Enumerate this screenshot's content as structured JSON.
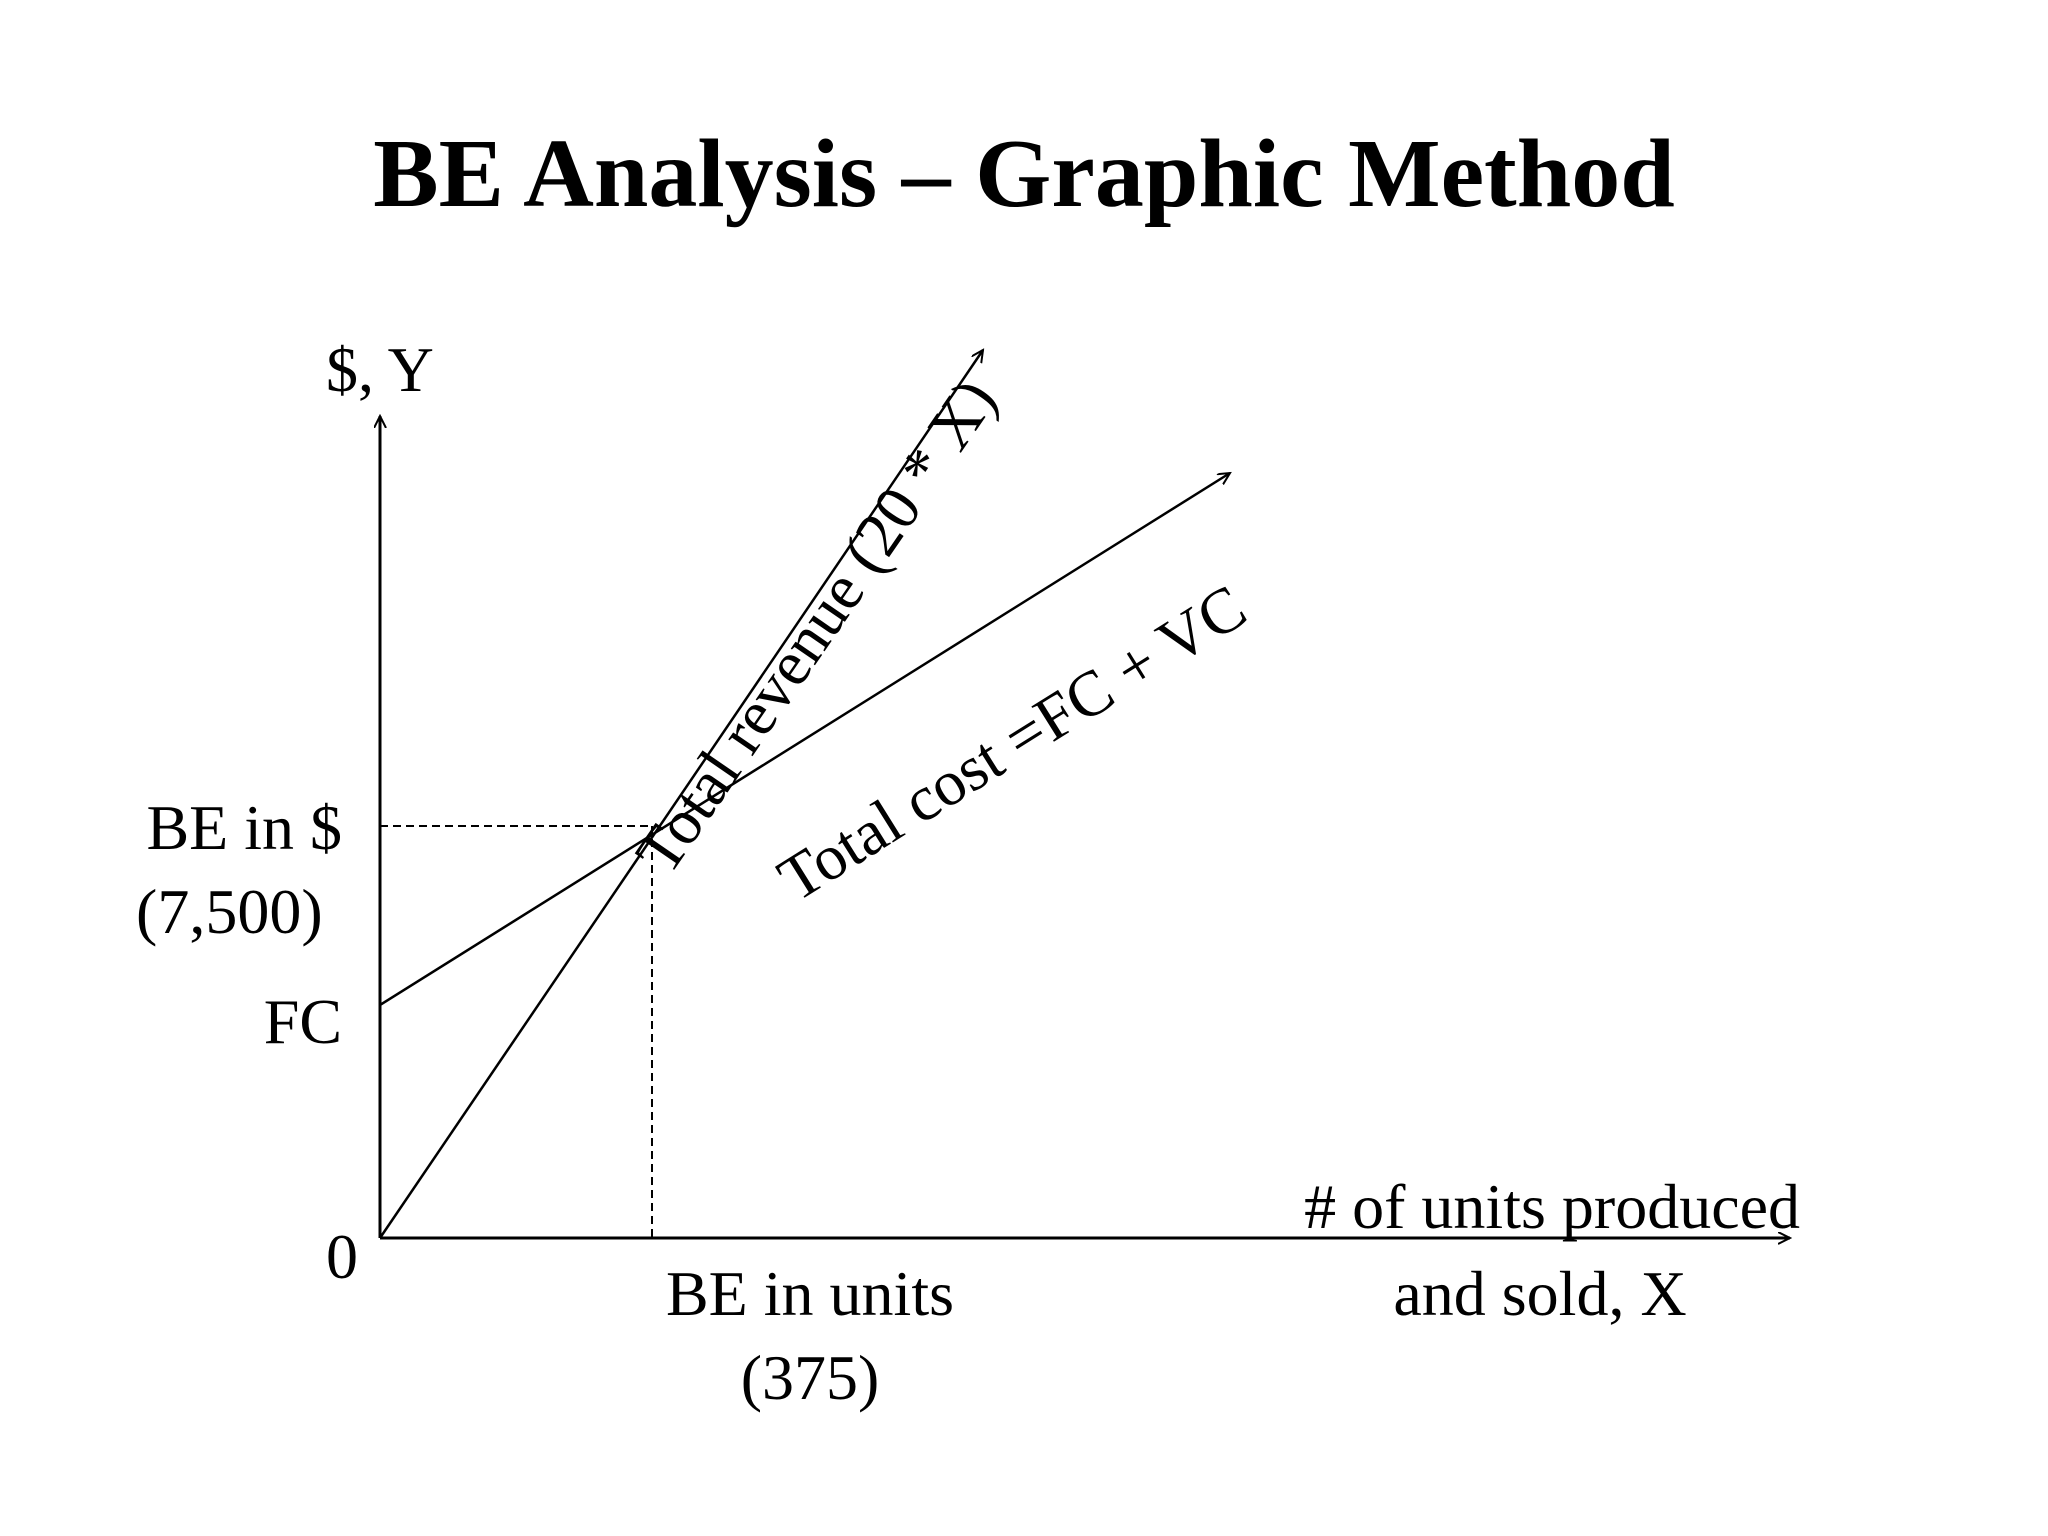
{
  "title": "BE Analysis – Graphic Method",
  "axes": {
    "y_label": "$, Y",
    "x_label_line1": "# of units produced",
    "x_label_line2": "and sold, X",
    "origin_label": "0"
  },
  "labels": {
    "be_dollars_line1": "BE in $",
    "be_dollars_line2": "(7,500)",
    "fc": "FC",
    "be_units_line1": "BE in units",
    "be_units_line2": "(375)",
    "total_revenue": "Total revenue (20 * X)",
    "total_cost": "Total cost =FC + VC"
  },
  "chart_data": {
    "type": "line",
    "title": "BE Analysis – Graphic Method",
    "xlabel": "# of units produced and sold, X",
    "ylabel": "$, Y",
    "break_even": {
      "units": 375,
      "dollars": 7500
    },
    "series": [
      {
        "name": "Total revenue (20 * X)",
        "slope": 20,
        "intercept": 0
      },
      {
        "name": "Total cost =FC + VC",
        "intercept_label": "FC"
      }
    ],
    "grid": false
  }
}
